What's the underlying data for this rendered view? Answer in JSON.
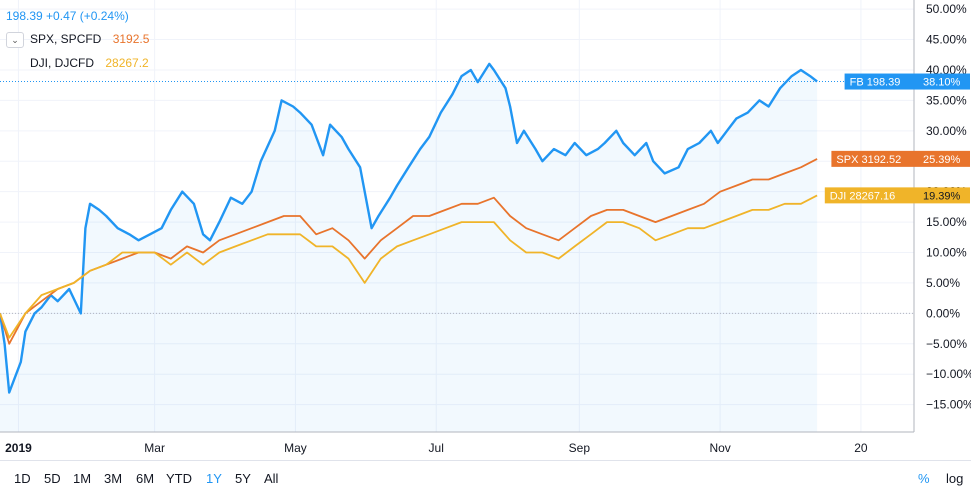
{
  "legend": {
    "main": {
      "price": "198.39",
      "change": "+0.47 (+0.24%)",
      "color": "#2196f3"
    },
    "compare": [
      {
        "symbol": "SPX, SPCFD",
        "value": "3192.5",
        "color": "#e8742c"
      },
      {
        "symbol": "DJI, DJCFD",
        "value": "28267.2",
        "color": "#f0b429"
      }
    ]
  },
  "icons": {
    "collapse": "chevron-down-icon"
  },
  "chart_data": {
    "type": "line",
    "x_axis_labels": [
      "2019",
      "Mar",
      "May",
      "Jul",
      "Sep",
      "Nov",
      "20"
    ],
    "y_axis_labels": [
      "50.00%",
      "45.00%",
      "40.00%",
      "35.00%",
      "30.00%",
      "25.00%",
      "20.00%",
      "15.00%",
      "10.00%",
      "5.00%",
      "0.00%",
      "−5.00%",
      "−10.00%",
      "−15.00%"
    ],
    "ylim": [
      -19.5,
      51.5
    ],
    "y_unit": "%",
    "grid": true,
    "series": [
      {
        "name": "FB",
        "color": "#2196f3",
        "area": true,
        "tag_text": "FB 198.39",
        "tag_pct": "38.10%",
        "last": 38.1,
        "points": [
          [
            "2018-12-24",
            0
          ],
          [
            "2018-12-26",
            -5
          ],
          [
            "2018-12-28",
            -13
          ],
          [
            "2019-01-02",
            -8
          ],
          [
            "2019-01-04",
            -3
          ],
          [
            "2019-01-08",
            0
          ],
          [
            "2019-01-11",
            1
          ],
          [
            "2019-01-15",
            3
          ],
          [
            "2019-01-18",
            2
          ],
          [
            "2019-01-23",
            4
          ],
          [
            "2019-01-28",
            0
          ],
          [
            "2019-01-30",
            14
          ],
          [
            "2019-02-01",
            18
          ],
          [
            "2019-02-05",
            17
          ],
          [
            "2019-02-08",
            16
          ],
          [
            "2019-02-13",
            14
          ],
          [
            "2019-02-18",
            13
          ],
          [
            "2019-02-22",
            12
          ],
          [
            "2019-02-27",
            13
          ],
          [
            "2019-03-04",
            14
          ],
          [
            "2019-03-08",
            17
          ],
          [
            "2019-03-13",
            20
          ],
          [
            "2019-03-18",
            18
          ],
          [
            "2019-03-22",
            13
          ],
          [
            "2019-03-25",
            12
          ],
          [
            "2019-03-29",
            15
          ],
          [
            "2019-04-03",
            19
          ],
          [
            "2019-04-08",
            18
          ],
          [
            "2019-04-12",
            20
          ],
          [
            "2019-04-16",
            25
          ],
          [
            "2019-04-22",
            30
          ],
          [
            "2019-04-25",
            35
          ],
          [
            "2019-04-30",
            34
          ],
          [
            "2019-05-03",
            33
          ],
          [
            "2019-05-08",
            31
          ],
          [
            "2019-05-13",
            26
          ],
          [
            "2019-05-16",
            31
          ],
          [
            "2019-05-21",
            29
          ],
          [
            "2019-05-24",
            27
          ],
          [
            "2019-05-29",
            24
          ],
          [
            "2019-06-03",
            14
          ],
          [
            "2019-06-06",
            16
          ],
          [
            "2019-06-11",
            19
          ],
          [
            "2019-06-14",
            21
          ],
          [
            "2019-06-19",
            24
          ],
          [
            "2019-06-24",
            27
          ],
          [
            "2019-06-28",
            29
          ],
          [
            "2019-07-03",
            33
          ],
          [
            "2019-07-08",
            36
          ],
          [
            "2019-07-12",
            39
          ],
          [
            "2019-07-16",
            40
          ],
          [
            "2019-07-19",
            38
          ],
          [
            "2019-07-24",
            41
          ],
          [
            "2019-07-26",
            40
          ],
          [
            "2019-07-31",
            37
          ],
          [
            "2019-08-02",
            34
          ],
          [
            "2019-08-05",
            28
          ],
          [
            "2019-08-08",
            30
          ],
          [
            "2019-08-13",
            27
          ],
          [
            "2019-08-16",
            25
          ],
          [
            "2019-08-21",
            27
          ],
          [
            "2019-08-26",
            26
          ],
          [
            "2019-08-30",
            28
          ],
          [
            "2019-09-04",
            26
          ],
          [
            "2019-09-09",
            27
          ],
          [
            "2019-09-12",
            28
          ],
          [
            "2019-09-17",
            30
          ],
          [
            "2019-09-20",
            28
          ],
          [
            "2019-09-25",
            26
          ],
          [
            "2019-09-30",
            28
          ],
          [
            "2019-10-03",
            25
          ],
          [
            "2019-10-08",
            23
          ],
          [
            "2019-10-14",
            24
          ],
          [
            "2019-10-18",
            27
          ],
          [
            "2019-10-23",
            28
          ],
          [
            "2019-10-28",
            30
          ],
          [
            "2019-10-31",
            28
          ],
          [
            "2019-11-04",
            30
          ],
          [
            "2019-11-08",
            32
          ],
          [
            "2019-11-13",
            33
          ],
          [
            "2019-11-18",
            35
          ],
          [
            "2019-11-22",
            34
          ],
          [
            "2019-11-27",
            37
          ],
          [
            "2019-12-02",
            39
          ],
          [
            "2019-12-06",
            40
          ],
          [
            "2019-12-10",
            39
          ],
          [
            "2019-12-13",
            38.1
          ]
        ]
      },
      {
        "name": "SPX",
        "color": "#e8742c",
        "area": false,
        "tag_text": "SPX 3192.52",
        "tag_pct": "25.39%",
        "last": 25.39,
        "points": [
          [
            "2018-12-24",
            0
          ],
          [
            "2018-12-28",
            -5
          ],
          [
            "2019-01-04",
            0
          ],
          [
            "2019-01-11",
            2
          ],
          [
            "2019-01-18",
            4
          ],
          [
            "2019-01-25",
            5
          ],
          [
            "2019-02-01",
            7
          ],
          [
            "2019-02-08",
            8
          ],
          [
            "2019-02-15",
            9
          ],
          [
            "2019-02-22",
            10
          ],
          [
            "2019-03-01",
            10
          ],
          [
            "2019-03-08",
            9
          ],
          [
            "2019-03-15",
            11
          ],
          [
            "2019-03-22",
            10
          ],
          [
            "2019-03-29",
            12
          ],
          [
            "2019-04-05",
            13
          ],
          [
            "2019-04-12",
            14
          ],
          [
            "2019-04-19",
            15
          ],
          [
            "2019-04-26",
            16
          ],
          [
            "2019-05-03",
            16
          ],
          [
            "2019-05-10",
            13
          ],
          [
            "2019-05-17",
            14
          ],
          [
            "2019-05-24",
            12
          ],
          [
            "2019-05-31",
            9
          ],
          [
            "2019-06-07",
            12
          ],
          [
            "2019-06-14",
            14
          ],
          [
            "2019-06-21",
            16
          ],
          [
            "2019-06-28",
            16
          ],
          [
            "2019-07-05",
            17
          ],
          [
            "2019-07-12",
            18
          ],
          [
            "2019-07-19",
            18
          ],
          [
            "2019-07-26",
            19
          ],
          [
            "2019-08-02",
            16
          ],
          [
            "2019-08-09",
            14
          ],
          [
            "2019-08-16",
            13
          ],
          [
            "2019-08-23",
            12
          ],
          [
            "2019-08-30",
            14
          ],
          [
            "2019-09-06",
            16
          ],
          [
            "2019-09-13",
            17
          ],
          [
            "2019-09-20",
            17
          ],
          [
            "2019-09-27",
            16
          ],
          [
            "2019-10-04",
            15
          ],
          [
            "2019-10-11",
            16
          ],
          [
            "2019-10-18",
            17
          ],
          [
            "2019-10-25",
            18
          ],
          [
            "2019-11-01",
            20
          ],
          [
            "2019-11-08",
            21
          ],
          [
            "2019-11-15",
            22
          ],
          [
            "2019-11-22",
            22
          ],
          [
            "2019-11-29",
            23
          ],
          [
            "2019-12-06",
            24
          ],
          [
            "2019-12-13",
            25.39
          ]
        ]
      },
      {
        "name": "DJI",
        "color": "#f0b429",
        "area": false,
        "tag_text": "DJI 28267.16",
        "tag_pct": "19.39%",
        "last": 19.39,
        "points": [
          [
            "2018-12-24",
            0
          ],
          [
            "2018-12-28",
            -4
          ],
          [
            "2019-01-04",
            0
          ],
          [
            "2019-01-11",
            3
          ],
          [
            "2019-01-18",
            4
          ],
          [
            "2019-01-25",
            5
          ],
          [
            "2019-02-01",
            7
          ],
          [
            "2019-02-08",
            8
          ],
          [
            "2019-02-15",
            10
          ],
          [
            "2019-02-22",
            10
          ],
          [
            "2019-03-01",
            10
          ],
          [
            "2019-03-08",
            8
          ],
          [
            "2019-03-15",
            10
          ],
          [
            "2019-03-22",
            8
          ],
          [
            "2019-03-29",
            10
          ],
          [
            "2019-04-05",
            11
          ],
          [
            "2019-04-12",
            12
          ],
          [
            "2019-04-19",
            13
          ],
          [
            "2019-04-26",
            13
          ],
          [
            "2019-05-03",
            13
          ],
          [
            "2019-05-10",
            11
          ],
          [
            "2019-05-17",
            11
          ],
          [
            "2019-05-24",
            9
          ],
          [
            "2019-05-31",
            5
          ],
          [
            "2019-06-07",
            9
          ],
          [
            "2019-06-14",
            11
          ],
          [
            "2019-06-21",
            12
          ],
          [
            "2019-06-28",
            13
          ],
          [
            "2019-07-05",
            14
          ],
          [
            "2019-07-12",
            15
          ],
          [
            "2019-07-19",
            15
          ],
          [
            "2019-07-26",
            15
          ],
          [
            "2019-08-02",
            12
          ],
          [
            "2019-08-09",
            10
          ],
          [
            "2019-08-16",
            10
          ],
          [
            "2019-08-23",
            9
          ],
          [
            "2019-08-30",
            11
          ],
          [
            "2019-09-06",
            13
          ],
          [
            "2019-09-13",
            15
          ],
          [
            "2019-09-20",
            15
          ],
          [
            "2019-09-27",
            14
          ],
          [
            "2019-10-04",
            12
          ],
          [
            "2019-10-11",
            13
          ],
          [
            "2019-10-18",
            14
          ],
          [
            "2019-10-25",
            14
          ],
          [
            "2019-11-01",
            15
          ],
          [
            "2019-11-08",
            16
          ],
          [
            "2019-11-15",
            17
          ],
          [
            "2019-11-22",
            17
          ],
          [
            "2019-11-29",
            18
          ],
          [
            "2019-12-06",
            18
          ],
          [
            "2019-12-13",
            19.39
          ]
        ]
      }
    ]
  },
  "range_buttons": [
    "1D",
    "5D",
    "1M",
    "3M",
    "6M",
    "YTD",
    "1Y",
    "5Y",
    "All"
  ],
  "active_range": "1Y",
  "scale_buttons": {
    "percent": "%",
    "log": "log"
  }
}
